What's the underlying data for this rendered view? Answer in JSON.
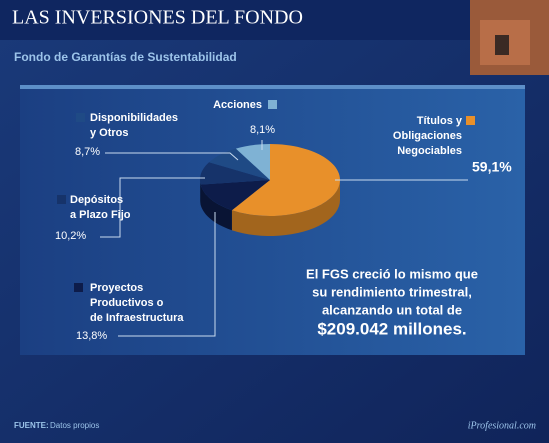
{
  "chart_data": {
    "type": "pie",
    "title": "LAS INVERSIONES DEL FONDO",
    "subtitle": "Fondo de Garantías de Sustentabilidad",
    "categories": [
      [
        "Títulos y",
        "Obligaciones",
        "Negociables"
      ],
      [
        "Proyectos",
        "Productivos o",
        "de Infraestructura"
      ],
      [
        "Depósitos",
        "a Plazo Fijo"
      ],
      [
        "Disponibilidades",
        "y Otros"
      ],
      [
        "Acciones"
      ]
    ],
    "values": [
      59.1,
      13.8,
      10.2,
      8.7,
      8.1
    ],
    "value_labels": [
      "59,1%",
      "13,8%",
      "10,2%",
      "8,7%",
      "8,1%"
    ],
    "colors": [
      "#e8902a",
      "#0d1c4a",
      "#16336a",
      "#1f4a85",
      "#7fb2d4"
    ],
    "annotation": [
      "El FGS creció lo mismo que",
      "su rendimiento trimestral,",
      "alcanzando un total de",
      "$209.042 millones."
    ],
    "source_label": "FUENTE:",
    "source": "Datos propios",
    "credit": "iProfesional.com"
  }
}
